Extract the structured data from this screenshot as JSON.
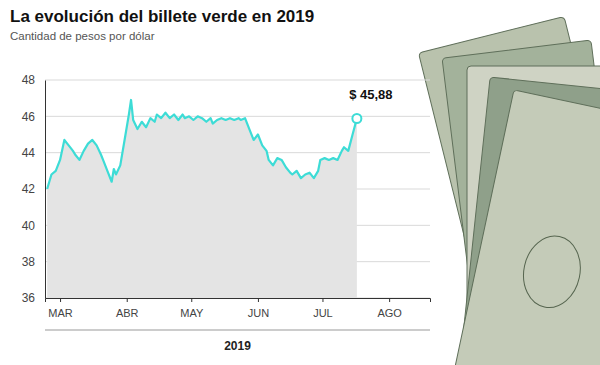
{
  "chart_data": {
    "type": "area",
    "title": "La evolución del billete verde en 2019",
    "subtitle": "Cantidad de pesos por dólar",
    "x_label": "2019",
    "annotation": "$ 45,88",
    "color": "#3ddcd6",
    "grid": true,
    "xlim": [
      -7,
      172
    ],
    "xticks": [
      {
        "value": 0,
        "label": "MAR"
      },
      {
        "value": 31,
        "label": "ABR"
      },
      {
        "value": 61,
        "label": "MAY"
      },
      {
        "value": 92,
        "label": "JUN"
      },
      {
        "value": 122,
        "label": "JUL"
      },
      {
        "value": 153,
        "label": "AGO"
      }
    ],
    "ylim": [
      36,
      48
    ],
    "yticks": [
      36,
      38,
      40,
      42,
      44,
      46,
      48
    ],
    "x": [
      -6,
      -4,
      -2,
      0,
      2,
      4,
      6,
      7,
      9,
      11,
      13,
      15,
      17,
      19,
      20,
      22,
      24,
      25,
      26,
      28,
      30,
      32,
      33,
      34,
      36,
      38,
      40,
      42,
      44,
      45,
      47,
      49,
      51,
      53,
      55,
      57,
      58,
      60,
      62,
      64,
      66,
      68,
      70,
      71,
      73,
      75,
      77,
      79,
      81,
      83,
      84,
      86,
      88,
      90,
      92,
      94,
      96,
      97,
      99,
      101,
      103,
      105,
      107,
      108,
      110,
      112,
      114,
      116,
      118,
      120,
      121,
      123,
      125,
      127,
      129,
      131,
      132,
      134,
      136,
      138
    ],
    "values": [
      42.0,
      42.8,
      43.0,
      43.6,
      44.7,
      44.4,
      44.1,
      43.9,
      43.6,
      44.1,
      44.5,
      44.7,
      44.4,
      43.9,
      43.6,
      43.0,
      42.4,
      43.1,
      42.8,
      43.3,
      44.7,
      46.1,
      46.9,
      45.8,
      45.3,
      45.7,
      45.4,
      45.9,
      45.7,
      46.1,
      45.9,
      46.2,
      45.9,
      46.1,
      45.8,
      46.1,
      45.9,
      46.0,
      45.8,
      46.0,
      45.9,
      45.7,
      45.9,
      45.6,
      45.8,
      45.9,
      45.8,
      45.9,
      45.8,
      45.9,
      45.8,
      45.9,
      45.3,
      44.7,
      45.0,
      44.4,
      44.1,
      43.6,
      43.3,
      43.7,
      43.6,
      43.2,
      42.9,
      42.8,
      43.0,
      42.6,
      42.8,
      42.9,
      42.6,
      43.0,
      43.6,
      43.7,
      43.6,
      43.7,
      43.6,
      44.1,
      44.3,
      44.1,
      45.0,
      45.88
    ]
  }
}
